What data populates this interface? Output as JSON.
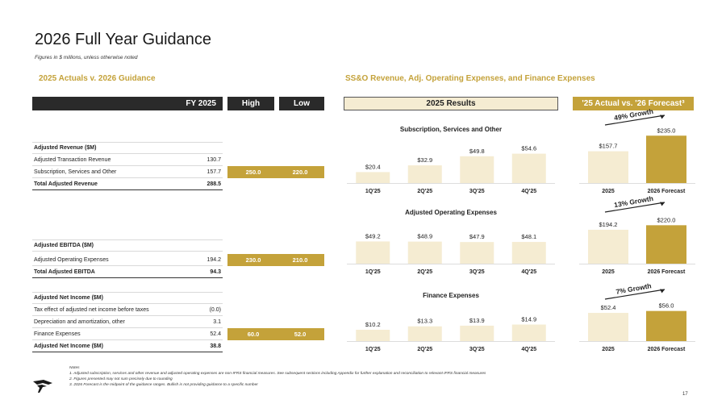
{
  "title": "2026 Full Year Guidance",
  "subtitle": "Figures in $ millions, unless otherwise noted",
  "left_section_title": "2025 Actuals v. 2026 Guidance",
  "right_section_title": "SS&O Revenue, Adj. Operating Expenses, and Finance Expenses",
  "headers": {
    "fy": "FY 2025",
    "high": "High",
    "low": "Low",
    "results": "2025 Results",
    "compare": "'25 Actual vs. '26 Forecast³"
  },
  "table": {
    "revenue": [
      {
        "label": "Adjusted Revenue ($M)",
        "value": ""
      },
      {
        "label": "Adjusted Transaction Revenue",
        "value": "130.7"
      },
      {
        "label": "Subscription, Services and Other",
        "value": "157.7"
      },
      {
        "label": "Total Adjusted Revenue",
        "value": "288.5"
      }
    ],
    "ebitda": [
      {
        "label": "Adjusted EBITDA ($M)",
        "value": ""
      },
      {
        "label": "Adjusted Operating Expenses",
        "value": "194.2"
      },
      {
        "label": "Total Adjusted EBITDA",
        "value": "94.3"
      }
    ],
    "net_income": [
      {
        "label": "Adjusted Net Income ($M)",
        "value": ""
      },
      {
        "label": "Tax effect of adjusted net income before taxes",
        "value": "(0.0)"
      },
      {
        "label": "Depreciation and amortization, other",
        "value": "3.1"
      },
      {
        "label": "Finance Expenses",
        "value": "52.4"
      },
      {
        "label": "Adjusted Net Income ($M)",
        "value": "38.8"
      }
    ]
  },
  "guidance": [
    {
      "high": "250.0",
      "low": "220.0"
    },
    {
      "high": "230.0",
      "low": "210.0"
    },
    {
      "high": "60.0",
      "low": "52.0"
    }
  ],
  "chart_data": [
    {
      "type": "bar",
      "title": "Subscription, Services and Other",
      "categories": [
        "1Q'25",
        "2Q'25",
        "3Q'25",
        "4Q'25"
      ],
      "values": [
        20.4,
        32.9,
        49.8,
        54.6
      ],
      "labels": [
        "$20.4",
        "$32.9",
        "$49.8",
        "$54.6"
      ],
      "ylim": [
        0,
        60
      ]
    },
    {
      "type": "bar",
      "title": "Adjusted Operating Expenses",
      "categories": [
        "1Q'25",
        "2Q'25",
        "3Q'25",
        "4Q'25"
      ],
      "values": [
        49.2,
        48.9,
        47.9,
        48.1
      ],
      "labels": [
        "$49.2",
        "$48.9",
        "$47.9",
        "$48.1"
      ],
      "ylim": [
        0,
        50
      ]
    },
    {
      "type": "bar",
      "title": "Finance Expenses",
      "categories": [
        "1Q'25",
        "2Q'25",
        "3Q'25",
        "4Q'25"
      ],
      "values": [
        10.2,
        13.3,
        13.9,
        14.9
      ],
      "labels": [
        "$10.2",
        "$13.3",
        "$13.9",
        "$14.9"
      ],
      "ylim": [
        0,
        16
      ]
    },
    {
      "type": "bar",
      "title": "",
      "categories": [
        "2025",
        "2026 Forecast"
      ],
      "values": [
        157.7,
        235.0
      ],
      "labels": [
        "$157.7",
        "$235.0"
      ],
      "annotation": "49% Growth",
      "ylim": [
        0,
        240
      ]
    },
    {
      "type": "bar",
      "title": "",
      "categories": [
        "2025",
        "2026 Forecast"
      ],
      "values": [
        194.2,
        220.0
      ],
      "labels": [
        "$194.2",
        "$220.0"
      ],
      "annotation": "13% Growth",
      "ylim": [
        0,
        240
      ]
    },
    {
      "type": "bar",
      "title": "",
      "categories": [
        "2025",
        "2026 Forecast"
      ],
      "values": [
        52.4,
        56.0
      ],
      "labels": [
        "$52.4",
        "$56.0"
      ],
      "annotation": "7% Growth",
      "ylim": [
        0,
        60
      ]
    }
  ],
  "notes": {
    "heading": "Notes",
    "items": [
      "1.   Adjusted subscription, services and other revenue and adjusted operating expenses are non-IFRS financial measures. See subsequent sections including Appendix for further explanation and reconciliation to relevant IFRS financial measures",
      "2.   Figures presented may not sum precisely due to rounding",
      "3.   2026 Forecast is the midpoint of the guidance ranges. Bullish is not providing guidance to a specific number"
    ]
  },
  "page_number": "17",
  "colors": {
    "gold": "#c4a23a",
    "light_gold": "#f5ecd2",
    "dark": "#2a2a2a"
  }
}
